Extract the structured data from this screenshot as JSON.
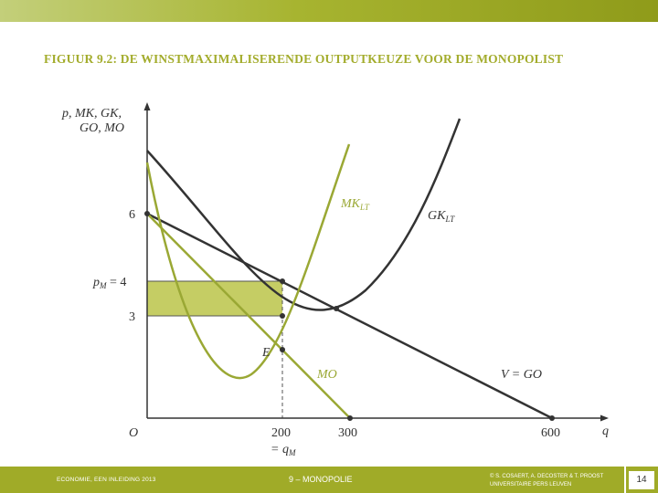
{
  "title": "FIGUUR 9.2: DE WINSTMAXIMALISERENDE OUTPUTKEUZE VOOR DE MONOPOLIST",
  "axes": {
    "y_label_line1": "p, MK, GK,",
    "y_label_line2": "GO, MO",
    "x_label": "q",
    "origin": "O"
  },
  "y_ticks": {
    "six": "6",
    "pm_prefix": "p",
    "pm_sub": "M",
    "pm_suffix": " = 4",
    "three": "3"
  },
  "x_ticks": {
    "two_hundred": "200",
    "three_hundred": "300",
    "six_hundred": "600",
    "qm_prefix": "= q",
    "qm_sub": "M"
  },
  "curve_labels": {
    "mk_main": "MK",
    "mk_sub": "LT",
    "gk_main": "GK",
    "gk_sub": "LT",
    "mo": "MO",
    "demand": "V = GO",
    "point_e": "E"
  },
  "colors": {
    "green": "#9aa834",
    "dark": "#333333",
    "profit_fill": "#c5cd64",
    "bar": "#a0ab28"
  },
  "footer": {
    "left": "ECONOMIE, EEN INLEIDING 2013",
    "center": "9 – MONOPOLIE",
    "right_line1": "© S. COSAERT, A. DECOSTER & T. PROOST",
    "right_line2": "UNIVERSITAIRE PERS LEUVEN",
    "page": "14"
  }
}
